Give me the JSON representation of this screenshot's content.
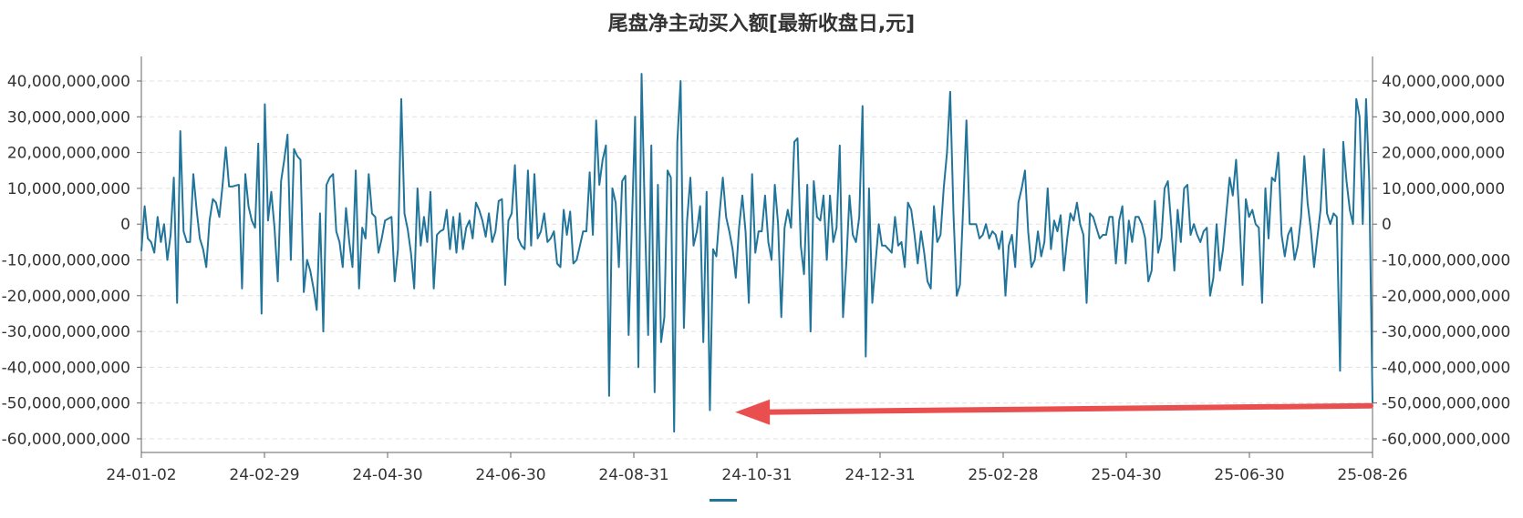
{
  "chart_data": {
    "type": "line",
    "title": "尾盘净主动买入额[最新收盘日,元]",
    "x_tick_labels": [
      "24-01-02",
      "24-02-29",
      "24-04-30",
      "24-06-30",
      "24-08-31",
      "24-10-31",
      "24-12-31",
      "25-02-28",
      "25-04-30",
      "25-06-30",
      "25-08-26"
    ],
    "y_tick_labels": [
      "40,000,000,000",
      "30,000,000,000",
      "20,000,000,000",
      "10,000,000,000",
      "0",
      "-10,000,000,000",
      "-20,000,000,000",
      "-30,000,000,000",
      "-40,000,000,000",
      "-50,000,000,000",
      "-60,000,000,000"
    ],
    "ylim": [
      -60000000000,
      40000000000
    ],
    "xlabel": "",
    "ylabel": "",
    "grid": true,
    "legend_position": "bottom-center",
    "series": [
      {
        "name": "",
        "color": "#21759b",
        "values": [
          -7500000000,
          5000000000,
          -4000000000,
          -5000000000,
          -8000000000,
          2000000000,
          -5000000000,
          0,
          -10000000000,
          -3000000000,
          13000000000,
          -22000000000,
          26000000000,
          -2000000000,
          -5000000000,
          -5000000000,
          14000000000,
          4000000000,
          -4000000000,
          -7000000000,
          -12000000000,
          1000000000,
          7000000000,
          6000000000,
          2000000000,
          11000000000,
          21500000000,
          10500000000,
          10500000000,
          10800000000,
          11000000000,
          -18000000000,
          14000000000,
          5000000000,
          1000000000,
          -1000000000,
          22500000000,
          -25000000000,
          33500000000,
          1000000000,
          9000000000,
          -1000000000,
          -16000000000,
          12000000000,
          18000000000,
          25000000000,
          -10000000000,
          21000000000,
          19000000000,
          18000000000,
          -19000000000,
          -10000000000,
          -13000000000,
          -18000000000,
          -24000000000,
          3000000000,
          -30000000000,
          11000000000,
          13000000000,
          14000000000,
          -2000000000,
          -5000000000,
          -12000000000,
          4500000000,
          -5000000000,
          -12000000000,
          15000000000,
          -18000000000,
          -1000000000,
          -4000000000,
          14000000000,
          3000000000,
          2000000000,
          -8000000000,
          -4000000000,
          1000000000,
          1500000000,
          2000000000,
          -16000000000,
          -7000000000,
          35000000000,
          3000000000,
          -1500000000,
          -8000000000,
          -18000000000,
          10000000000,
          -6000000000,
          2000000000,
          -5000000000,
          9000000000,
          -18000000000,
          -3000000000,
          -2000000000,
          -1500000000,
          4000000000,
          -7000000000,
          2000000000,
          -8000000000,
          3000000000,
          -7000000000,
          -1000000000,
          1000000000,
          -4000000000,
          6000000000,
          4000000000,
          1000000000,
          -3500000000,
          3000000000,
          -5000000000,
          -2000000000,
          6500000000,
          7000000000,
          -17000000000,
          1000000000,
          3000000000,
          16500000000,
          -4000000000,
          -6000000000,
          -7000000000,
          15000000000,
          -6000000000,
          14000000000,
          -4000000000,
          -2000000000,
          3000000000,
          -5000000000,
          -4000000000,
          -2000000000,
          -11000000000,
          -12000000000,
          4000000000,
          -3000000000,
          3500000000,
          -11000000000,
          -10000000000,
          -6000000000,
          -2000000000,
          -2000000000,
          14500000000,
          -3000000000,
          29000000000,
          11000000000,
          18000000000,
          22000000000,
          -48000000000,
          10000000000,
          6000000000,
          -12000000000,
          12000000000,
          13500000000,
          -31000000000,
          0,
          30000000000,
          -40000000000,
          42000000000,
          2000000000,
          -31000000000,
          22000000000,
          -47000000000,
          11000000000,
          -33000000000,
          -26000000000,
          15000000000,
          13000000000,
          -58000000000,
          23000000000,
          40000000000,
          -29000000000,
          1000000000,
          13000000000,
          -6000000000,
          -2000000000,
          5000000000,
          -33000000000,
          9000000000,
          -52000000000,
          -7000000000,
          -9000000000,
          3000000000,
          13000000000,
          2000000000,
          -2000000000,
          -7000000000,
          -15000000000,
          -1000000000,
          8000000000,
          -2000000000,
          -22000000000,
          14000000000,
          -8000000000,
          -2000000000,
          -2000000000,
          8000000000,
          -5000000000,
          -10000000000,
          11000000000,
          0,
          -26000000000,
          -1000000000,
          4000000000,
          -1000000000,
          23000000000,
          24000000000,
          -6000000000,
          -14000000000,
          11000000000,
          -30000000000,
          12000000000,
          2000000000,
          1000000000,
          8000000000,
          -10000000000,
          8000000000,
          -5000000000,
          -1000000000,
          22000000000,
          -26000000000,
          -11000000000,
          8000000000,
          -3000000000,
          -5000000000,
          2000000000,
          33000000000,
          -37000000000,
          10000000000,
          -22000000000,
          -11000000000,
          0,
          -6000000000,
          -6000000000,
          -7000000000,
          -8000000000,
          2000000000,
          -6000000000,
          -5000000000,
          -12000000000,
          6000000000,
          4000000000,
          -3000000000,
          -11000000000,
          -2000000000,
          -8000000000,
          -16000000000,
          -18000000000,
          5000000000,
          -5000000000,
          -3000000000,
          10000000000,
          20000000000,
          37000000000,
          3000000000,
          -20000000000,
          -17000000000,
          5000000000,
          29000000000,
          0,
          0,
          0,
          -4000000000,
          -3000000000,
          0,
          -4000000000,
          -2000000000,
          -3000000000,
          -7000000000,
          -2000000000,
          -20000000000,
          -6000000000,
          -3000000000,
          -12000000000,
          6000000000,
          10000000000,
          15000000000,
          -2000000000,
          -12000000000,
          -10000000000,
          -2000000000,
          -9000000000,
          -5000000000,
          10000000000,
          -7000000000,
          1000000000,
          -2000000000,
          2500000000,
          -13000000000,
          -4000000000,
          3000000000,
          1000000000,
          6000000000,
          0,
          -3000000000,
          -22000000000,
          3000000000,
          2000000000,
          -1000000000,
          -4000000000,
          -3000000000,
          -3000000000,
          2000000000,
          2000000000,
          -11000000000,
          1000000000,
          5000000000,
          -11000000000,
          1000000000,
          -5000000000,
          2000000000,
          2000000000,
          0,
          -4000000000,
          -16000000000,
          -13000000000,
          6500000000,
          -8000000000,
          -4000000000,
          10000000000,
          12000000000,
          0,
          -13000000000,
          4000000000,
          -5000000000,
          10000000000,
          11000000000,
          -3000000000,
          0,
          -3000000000,
          -5000000000,
          -2000000000,
          -1000000000,
          -20000000000,
          -15000000000,
          0,
          -13000000000,
          -7000000000,
          3000000000,
          13000000000,
          8000000000,
          18000000000,
          2000000000,
          -17000000000,
          7000000000,
          2000000000,
          4000000000,
          0,
          -1000000000,
          -22000000000,
          10000000000,
          -4000000000,
          13000000000,
          12000000000,
          20000000000,
          -3000000000,
          -9000000000,
          -3000000000,
          -1000000000,
          -10000000000,
          -6000000000,
          2000000000,
          19000000000,
          6000000000,
          -1500000000,
          -12000000000,
          -4000000000,
          4000000000,
          21000000000,
          3000000000,
          0,
          3000000000,
          2000000000,
          -41000000000,
          23000000000,
          12000000000,
          4000000000,
          0,
          35000000000,
          30000000000,
          0,
          35000000000,
          12000000000,
          -50000000000
        ]
      }
    ],
    "annotation": {
      "type": "arrow",
      "color": "#ea4f4f",
      "from": {
        "x_value": "25-08-26",
        "y": -50000000000
      },
      "to_index": 180
    }
  }
}
